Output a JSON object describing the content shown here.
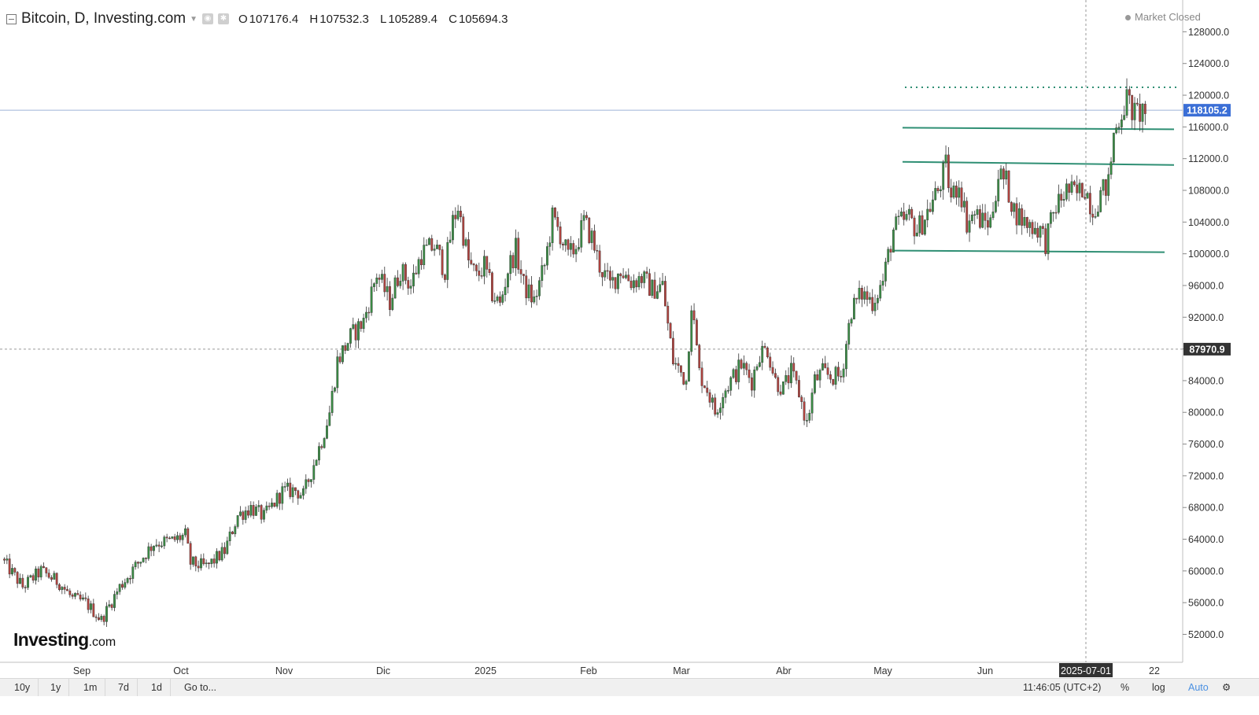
{
  "header": {
    "title": "Bitcoin, D, Investing.com",
    "ohlc": [
      {
        "label": "O",
        "value": "107176.4"
      },
      {
        "label": "H",
        "value": "107532.3"
      },
      {
        "label": "L",
        "value": "105289.4"
      },
      {
        "label": "C",
        "value": "105694.3"
      }
    ],
    "market_status": "Market Closed"
  },
  "logo": {
    "main": "Investing",
    "suffix": ".com"
  },
  "toolbar": {
    "ranges": [
      "10y",
      "1y",
      "1m",
      "7d",
      "1d"
    ],
    "goto_label": "Go to...",
    "time": "11:46:05 (UTC+2)",
    "percent_label": "%",
    "log_label": "log",
    "auto_label": "Auto",
    "settings_icon": "gear-icon"
  },
  "colors": {
    "up": "#3a8d45",
    "down": "#b1433f",
    "level_line": "#2f8f74",
    "price_badge": "#3b6fd6",
    "crosshair_badge": "#333333"
  },
  "chart_data": {
    "type": "candlestick",
    "title": "Bitcoin, D, Investing.com",
    "y_range": [
      50000,
      130000
    ],
    "y_ticks": [
      "128000.0",
      "124000.0",
      "120000.0",
      "116000.0",
      "112000.0",
      "108000.0",
      "104000.0",
      "100000.0",
      "96000.0",
      "92000.0",
      "88000.0",
      "84000.0",
      "80000.0",
      "76000.0",
      "72000.0",
      "68000.0",
      "64000.0",
      "60000.0",
      "56000.0",
      "52000.0"
    ],
    "x_labels": [
      "Sep",
      "Oct",
      "Nov",
      "Dic",
      "2025",
      "Feb",
      "Mar",
      "Abr",
      "May",
      "Jun",
      "2025-07-01",
      "22"
    ],
    "current_price": "118105.2",
    "crosshair_price": "87970.9",
    "crosshair_date": "2025-07-01",
    "levels": [
      {
        "value": 121000,
        "style": "dotted"
      },
      {
        "value": 115800,
        "style": "solid"
      },
      {
        "value": 111400,
        "style": "solid"
      },
      {
        "value": 100300,
        "style": "solid"
      }
    ],
    "anchors": [
      [
        0,
        61500
      ],
      [
        8,
        58000
      ],
      [
        15,
        60000
      ],
      [
        22,
        58500
      ],
      [
        27,
        56500
      ],
      [
        32,
        56000
      ],
      [
        38,
        53800
      ],
      [
        45,
        58000
      ],
      [
        52,
        61000
      ],
      [
        58,
        63500
      ],
      [
        65,
        63800
      ],
      [
        70,
        64500
      ],
      [
        72,
        61000
      ],
      [
        78,
        60500
      ],
      [
        85,
        62500
      ],
      [
        90,
        67000
      ],
      [
        95,
        68000
      ],
      [
        100,
        66800
      ],
      [
        107,
        70000
      ],
      [
        112,
        70200
      ],
      [
        115,
        69500
      ],
      [
        118,
        72500
      ],
      [
        122,
        76500
      ],
      [
        125,
        80000
      ],
      [
        128,
        86500
      ],
      [
        133,
        89500
      ],
      [
        138,
        91500
      ],
      [
        143,
        97500
      ],
      [
        148,
        94000
      ],
      [
        152,
        98000
      ],
      [
        156,
        96000
      ],
      [
        160,
        100000
      ],
      [
        165,
        101000
      ],
      [
        169,
        98000
      ],
      [
        172,
        104000
      ],
      [
        174,
        106000
      ],
      [
        178,
        99000
      ],
      [
        181,
        97000
      ],
      [
        184,
        98500
      ],
      [
        187,
        95000
      ],
      [
        190,
        93500
      ],
      [
        193,
        98000
      ],
      [
        196,
        100500
      ],
      [
        199,
        96000
      ],
      [
        203,
        94000
      ],
      [
        207,
        98500
      ],
      [
        210,
        104500
      ],
      [
        213,
        102500
      ],
      [
        216,
        99500
      ],
      [
        219,
        101000
      ],
      [
        222,
        104000
      ],
      [
        225,
        102000
      ],
      [
        228,
        98500
      ],
      [
        232,
        96000
      ],
      [
        236,
        98000
      ],
      [
        240,
        96500
      ],
      [
        244,
        97000
      ],
      [
        248,
        95500
      ],
      [
        252,
        96000
      ],
      [
        254,
        91000
      ],
      [
        256,
        86500
      ],
      [
        258,
        85500
      ],
      [
        261,
        84000
      ],
      [
        263,
        94000
      ],
      [
        266,
        85000
      ],
      [
        269,
        83000
      ],
      [
        272,
        80000
      ],
      [
        275,
        82500
      ],
      [
        278,
        84000
      ],
      [
        282,
        86000
      ],
      [
        286,
        84000
      ],
      [
        289,
        87500
      ],
      [
        292,
        88000
      ],
      [
        295,
        84000
      ],
      [
        298,
        83000
      ],
      [
        301,
        85000
      ],
      [
        304,
        82500
      ],
      [
        307,
        78500
      ],
      [
        310,
        84000
      ],
      [
        313,
        85000
      ],
      [
        316,
        84500
      ],
      [
        320,
        84500
      ],
      [
        324,
        93000
      ],
      [
        328,
        95000
      ],
      [
        332,
        94000
      ],
      [
        336,
        96500
      ],
      [
        340,
        103000
      ],
      [
        343,
        104000
      ],
      [
        346,
        104500
      ],
      [
        349,
        103000
      ],
      [
        351,
        104000
      ],
      [
        354,
        106000
      ],
      [
        357,
        108000
      ],
      [
        360,
        111000
      ],
      [
        362,
        107000
      ],
      [
        365,
        109000
      ],
      [
        368,
        104000
      ],
      [
        371,
        105000
      ],
      [
        374,
        104000
      ],
      [
        377,
        104000
      ],
      [
        380,
        110000
      ],
      [
        383,
        109000
      ],
      [
        386,
        105500
      ],
      [
        390,
        104000
      ],
      [
        393,
        103500
      ],
      [
        396,
        103000
      ],
      [
        398,
        101500
      ],
      [
        402,
        106000
      ],
      [
        406,
        108000
      ],
      [
        410,
        107500
      ],
      [
        413,
        108500
      ],
      [
        416,
        105500
      ],
      [
        419,
        107500
      ],
      [
        422,
        108800
      ],
      [
        424,
        115000
      ],
      [
        427,
        118000
      ],
      [
        429,
        119500
      ],
      [
        432,
        117500
      ],
      [
        435,
        118100
      ]
    ],
    "candle_count": 436
  }
}
